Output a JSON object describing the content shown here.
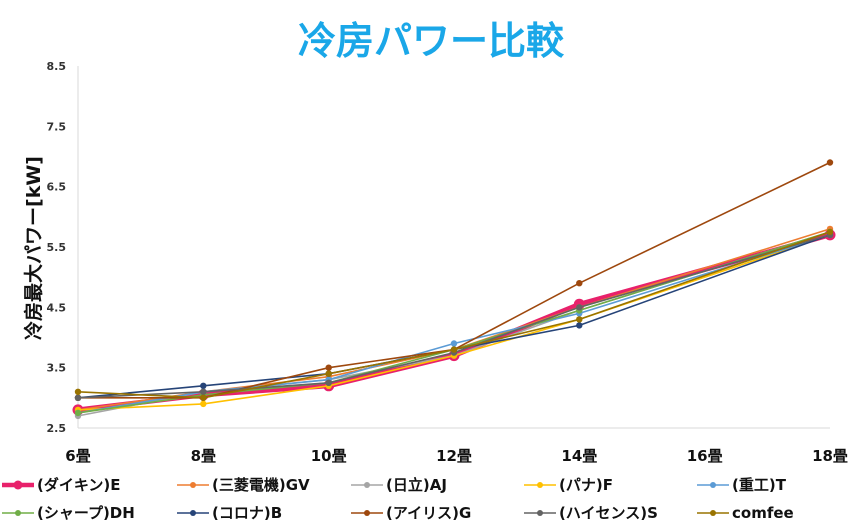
{
  "chart_data": {
    "type": "line",
    "title": "冷房パワー比較",
    "ylabel": "冷房最大パワー[kW]",
    "xlabel": "",
    "categories": [
      "6畳",
      "8畳",
      "10畳",
      "12畳",
      "14畳",
      "16畳",
      "18畳"
    ],
    "ylim": [
      2.5,
      8.5
    ],
    "yticks": [
      "2.5",
      "3.5",
      "4.5",
      "5.5",
      "6.5",
      "7.5",
      "8.5"
    ],
    "grid": false,
    "legend": "bottom",
    "series": [
      {
        "name": "(ダイキン)E",
        "color": "#e8216b",
        "width": 5,
        "values": [
          2.8,
          3.05,
          3.2,
          3.7,
          4.55,
          null,
          5.7
        ]
      },
      {
        "name": "(三菱電機)GV",
        "color": "#ed7d31",
        "width": 1.6,
        "values": [
          2.8,
          3.1,
          3.35,
          3.8,
          4.5,
          null,
          5.8
        ]
      },
      {
        "name": "(日立)AJ",
        "color": "#a5a5a5",
        "width": 1.6,
        "values": [
          2.7,
          3.1,
          3.3,
          3.7,
          4.45,
          null,
          5.75
        ]
      },
      {
        "name": "(パナ)F",
        "color": "#ffc000",
        "width": 1.6,
        "values": [
          2.8,
          2.9,
          3.2,
          3.7,
          4.3,
          null,
          5.7
        ]
      },
      {
        "name": "(重工)T",
        "color": "#5b9bd5",
        "width": 1.6,
        "values": [
          2.75,
          3.1,
          3.3,
          3.9,
          4.4,
          null,
          5.7
        ]
      },
      {
        "name": "(シャープ)DH",
        "color": "#70ad47",
        "width": 1.6,
        "values": [
          2.75,
          3.05,
          3.25,
          3.8,
          4.45,
          null,
          5.75
        ]
      },
      {
        "name": "(コロナ)B",
        "color": "#264478",
        "width": 1.6,
        "values": [
          3.0,
          3.2,
          3.4,
          null,
          4.2,
          null,
          5.7
        ]
      },
      {
        "name": "(アイリス)G",
        "color": "#9e480e",
        "width": 1.6,
        "values": [
          3.0,
          3.0,
          3.5,
          3.8,
          4.9,
          null,
          6.9
        ]
      },
      {
        "name": "(ハイセンス)S",
        "color": "#636363",
        "width": 1.6,
        "values": [
          3.0,
          3.1,
          3.25,
          3.75,
          4.5,
          null,
          5.7
        ]
      },
      {
        "name": "comfee",
        "color": "#997300",
        "width": 1.6,
        "values": [
          3.1,
          3.0,
          3.4,
          3.8,
          4.3,
          null,
          5.75
        ]
      }
    ]
  }
}
